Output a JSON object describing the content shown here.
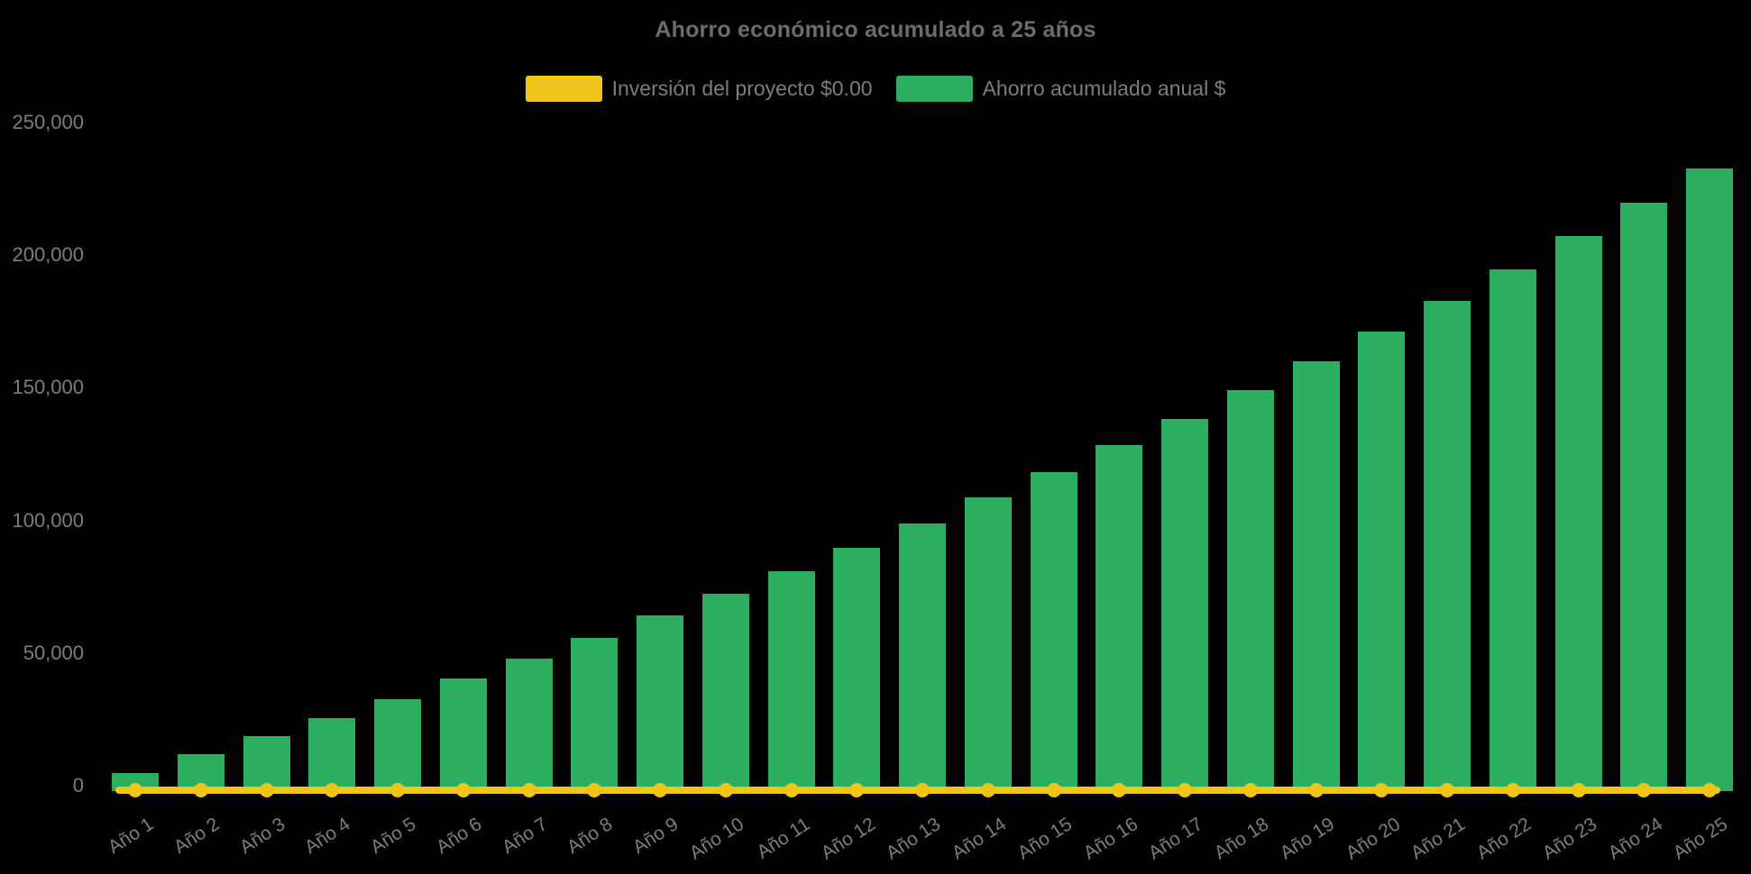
{
  "page": {
    "background_color": "#000000",
    "text_color": "#7D7D7D",
    "title_color": "#6C6C6C"
  },
  "chart": {
    "title": "Ahorro económico acumulado a 25 años"
  },
  "chart_data": {
    "type": "bar",
    "title": "Ahorro económico acumulado a 25 años",
    "xlabel": "",
    "ylabel": "",
    "ylim": [
      0,
      250000
    ],
    "y_ticks": [
      0,
      50000,
      100000,
      150000,
      200000,
      250000
    ],
    "grid": false,
    "legend_position": "top",
    "x_label_rotation_deg": -33,
    "categories": [
      "Año 1",
      "Año 2",
      "Año 3",
      "Año 4",
      "Año 5",
      "Año 6",
      "Año 7",
      "Año 8",
      "Año 9",
      "Año 10",
      "Año 11",
      "Año 12",
      "Año 13",
      "Año 14",
      "Año 15",
      "Año 16",
      "Año 17",
      "Año 18",
      "Año 19",
      "Año 20",
      "Año 21",
      "Año 22",
      "Año 23",
      "Año 24",
      "Año 25"
    ],
    "series": [
      {
        "name": "Inversión del proyecto $0.00",
        "type": "line",
        "color": "#F0C419",
        "marker": "circle",
        "values": [
          0,
          0,
          0,
          0,
          0,
          0,
          0,
          0,
          0,
          0,
          0,
          0,
          0,
          0,
          0,
          0,
          0,
          0,
          0,
          0,
          0,
          0,
          0,
          0,
          0
        ]
      },
      {
        "name": "Ahorro acumulado anual $",
        "type": "bar",
        "color": "#2BAE60",
        "values": [
          4800,
          12000,
          18600,
          25500,
          32600,
          40500,
          48000,
          55800,
          64200,
          72300,
          80700,
          89700,
          99000,
          108700,
          118300,
          128500,
          138400,
          149100,
          160100,
          171200,
          182700,
          194500,
          207200,
          219800,
          232700
        ]
      }
    ]
  }
}
